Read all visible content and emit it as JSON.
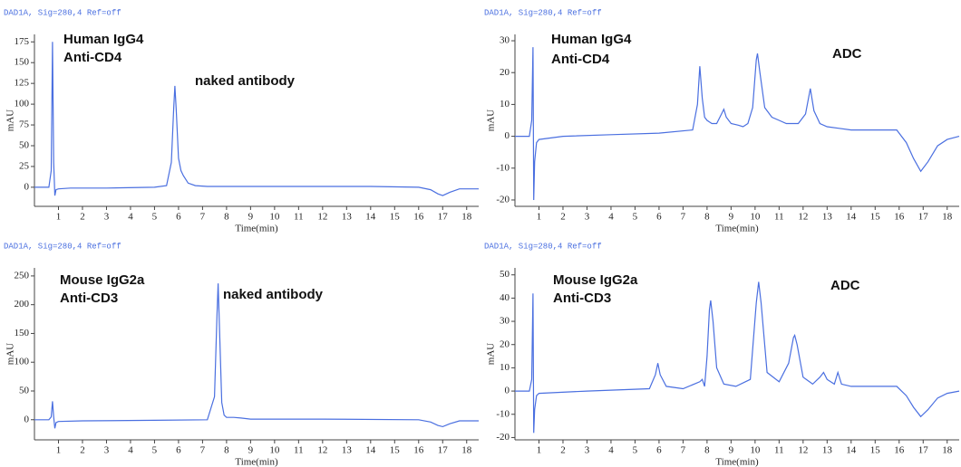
{
  "chart_data": [
    {
      "type": "line",
      "subtitle": "DAD1A, Sig=280,4 Ref=off",
      "annotations": [
        "Human IgG4",
        "Anti-CD4",
        "naked antibody"
      ],
      "x_label": "Time(min)",
      "y_label": "mAU",
      "color": "#4a6fe0",
      "x": [
        0,
        0.6,
        0.7,
        0.75,
        0.8,
        0.85,
        0.9,
        1.0,
        1.5,
        3,
        5,
        5.5,
        5.7,
        5.8,
        5.85,
        5.9,
        6.0,
        6.1,
        6.2,
        6.4,
        6.7,
        7.2,
        8,
        10,
        14,
        16,
        16.5,
        16.8,
        17.0,
        17.3,
        17.7,
        18.5
      ],
      "values": [
        0,
        0,
        20,
        175,
        30,
        -10,
        -3,
        -2,
        -1,
        -1,
        0,
        2,
        30,
        95,
        122,
        95,
        35,
        20,
        14,
        5,
        2,
        1,
        1,
        1,
        1,
        0,
        -3,
        -8,
        -10,
        -6,
        -2,
        -2
      ],
      "xlim": [
        0,
        18.5
      ],
      "ylim": [
        -23,
        184
      ],
      "xticks": [
        1,
        2,
        3,
        4,
        5,
        6,
        7,
        8,
        9,
        10,
        11,
        12,
        13,
        14,
        15,
        16,
        17,
        18
      ],
      "yticks": [
        0,
        25,
        50,
        75,
        100,
        125,
        150,
        175
      ]
    },
    {
      "type": "line",
      "subtitle": "DAD1A, Sig=280,4 Ref=off",
      "annotations": [
        "Human IgG4",
        "Anti-CD4",
        "ADC"
      ],
      "x_label": "Time(min)",
      "y_label": "mAU",
      "color": "#4a6fe0",
      "x": [
        0,
        0.6,
        0.7,
        0.75,
        0.78,
        0.82,
        0.9,
        1.0,
        2,
        4,
        6,
        7.4,
        7.6,
        7.7,
        7.8,
        7.9,
        8.0,
        8.1,
        8.2,
        8.4,
        8.6,
        8.7,
        8.8,
        9.0,
        9.3,
        9.5,
        9.7,
        9.9,
        10.05,
        10.1,
        10.2,
        10.4,
        10.7,
        11.0,
        11.3,
        11.5,
        11.8,
        12.1,
        12.3,
        12.45,
        12.7,
        13.0,
        13.5,
        14,
        15,
        15.9,
        16.3,
        16.6,
        16.9,
        17.2,
        17.6,
        18,
        18.5
      ],
      "values": [
        0,
        0,
        5,
        28,
        -20,
        -8,
        -2,
        -1,
        0,
        0.5,
        1,
        2,
        10,
        22,
        12,
        6,
        5,
        4.5,
        4,
        4,
        7,
        8.5,
        6,
        4,
        3.5,
        3,
        4,
        9,
        24,
        26,
        20,
        9,
        6,
        5,
        4,
        4,
        4,
        7,
        15,
        8,
        4,
        3,
        2.5,
        2,
        2,
        2,
        -2,
        -7,
        -11,
        -8,
        -3,
        -1,
        0
      ],
      "xlim": [
        0,
        18.5
      ],
      "ylim": [
        -22,
        32
      ],
      "xticks": [
        1,
        2,
        3,
        4,
        5,
        6,
        7,
        8,
        9,
        10,
        11,
        12,
        13,
        14,
        15,
        16,
        17,
        18
      ],
      "yticks": [
        -20,
        -10,
        0,
        10,
        20,
        30
      ]
    },
    {
      "type": "line",
      "subtitle": "DAD1A, Sig=280,4 Ref=off",
      "annotations": [
        "Mouse IgG2a",
        "Anti-CD3",
        "naked antibody"
      ],
      "x_label": "Time(min)",
      "y_label": "mAU",
      "color": "#4a6fe0",
      "x": [
        0,
        0.6,
        0.7,
        0.75,
        0.8,
        0.85,
        0.9,
        1.0,
        2,
        5,
        7.2,
        7.5,
        7.6,
        7.65,
        7.7,
        7.8,
        7.9,
        8.0,
        8.3,
        8.6,
        9,
        12,
        16,
        16.5,
        16.8,
        17.0,
        17.3,
        17.7,
        18.5
      ],
      "values": [
        0,
        0,
        5,
        32,
        5,
        -15,
        -5,
        -3,
        -2,
        -1,
        0,
        40,
        180,
        237,
        170,
        30,
        8,
        4,
        4,
        3,
        1,
        1,
        0,
        -4,
        -10,
        -12,
        -7,
        -2,
        -2
      ],
      "xlim": [
        0,
        18.5
      ],
      "ylim": [
        -35,
        264
      ],
      "xticks": [
        1,
        2,
        3,
        4,
        5,
        6,
        7,
        8,
        9,
        10,
        11,
        12,
        13,
        14,
        15,
        16,
        17,
        18
      ],
      "yticks": [
        0,
        50,
        100,
        150,
        200,
        250
      ]
    },
    {
      "type": "line",
      "subtitle": "DAD1A, Sig=280,4 Ref=off",
      "annotations": [
        "Mouse IgG2a",
        "Anti-CD3",
        "ADC"
      ],
      "x_label": "Time(min)",
      "y_label": "mAU",
      "color": "#4a6fe0",
      "x": [
        0,
        0.6,
        0.7,
        0.75,
        0.78,
        0.82,
        0.9,
        1.0,
        3,
        5.6,
        5.85,
        5.95,
        6.05,
        6.3,
        7,
        7.7,
        7.8,
        7.9,
        8.0,
        8.1,
        8.15,
        8.25,
        8.4,
        8.7,
        9.2,
        9.8,
        10.05,
        10.15,
        10.25,
        10.5,
        11.0,
        11.4,
        11.6,
        11.65,
        11.75,
        12.0,
        12.4,
        12.7,
        12.85,
        13.0,
        13.3,
        13.45,
        13.6,
        14,
        15.9,
        16.3,
        16.6,
        16.9,
        17.2,
        17.6,
        18,
        18.5
      ],
      "values": [
        0,
        0,
        5,
        42,
        -18,
        -8,
        -2,
        -1,
        0,
        1,
        7,
        12,
        7,
        2,
        1,
        4,
        5,
        2,
        15,
        35,
        39,
        30,
        10,
        3,
        2,
        5,
        38,
        47,
        38,
        8,
        4,
        12,
        23,
        24,
        20,
        6,
        3,
        6,
        8,
        5,
        3,
        8,
        3,
        2,
        2,
        -2,
        -7,
        -11,
        -8,
        -3,
        -1,
        0
      ],
      "xlim": [
        0,
        18.5
      ],
      "ylim": [
        -21,
        53
      ],
      "xticks": [
        1,
        2,
        3,
        4,
        5,
        6,
        7,
        8,
        9,
        10,
        11,
        12,
        13,
        14,
        15,
        16,
        17,
        18
      ],
      "yticks": [
        -20,
        -10,
        0,
        10,
        20,
        30,
        40,
        50
      ]
    }
  ]
}
